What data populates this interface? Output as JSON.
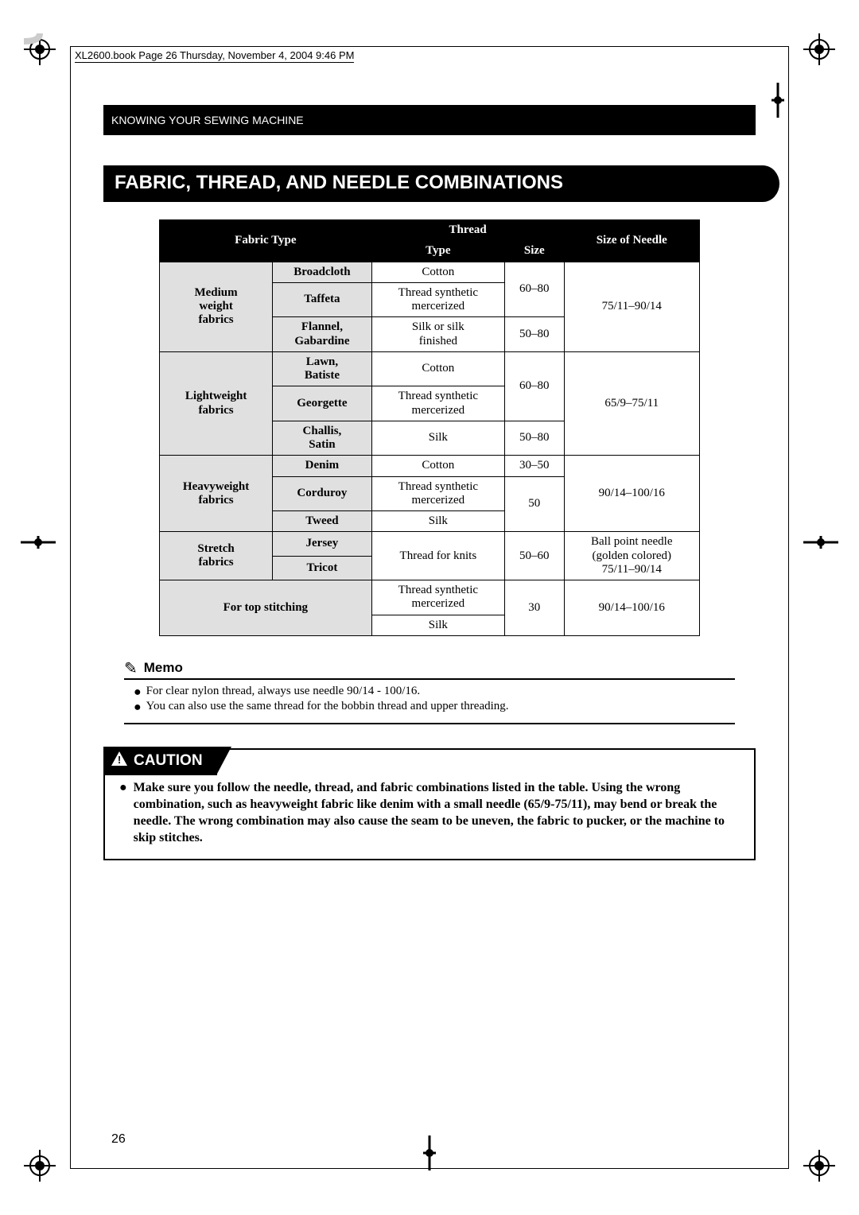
{
  "header": "XL2600.book  Page 26  Thursday, November 4, 2004  9:46 PM",
  "section": "KNOWING YOUR SEWING MACHINE",
  "title": "FABRIC, THREAD, AND NEEDLE COMBINATIONS",
  "table": {
    "headers": {
      "fabric": "Fabric Type",
      "thread": "Thread",
      "type": "Type",
      "size": "Size",
      "needle": "Size of Needle"
    },
    "groups": [
      {
        "group": "Medium weight fabrics",
        "rows": [
          {
            "fabric": "Broadcloth",
            "thread": "Cotton",
            "size": "60–80",
            "needle": "75/11–90/14",
            "sizeRowspan": 2,
            "needleRowspan": 3
          },
          {
            "fabric": "Taffeta",
            "thread": "Thread synthetic mercerized"
          },
          {
            "fabric": "Flannel, Gabardine",
            "thread": "Silk or silk finished",
            "size": "50–80"
          }
        ]
      },
      {
        "group": "Lightweight fabrics",
        "rows": [
          {
            "fabric": "Lawn, Batiste",
            "thread": "Cotton",
            "size": "60–80",
            "needle": "65/9–75/11",
            "sizeRowspan": 2,
            "needleRowspan": 3
          },
          {
            "fabric": "Georgette",
            "thread": "Thread synthetic mercerized"
          },
          {
            "fabric": "Challis, Satin",
            "thread": "Silk",
            "size": "50–80"
          }
        ]
      },
      {
        "group": "Heavyweight fabrics",
        "rows": [
          {
            "fabric": "Denim",
            "thread": "Cotton",
            "size": "30–50",
            "needle": "90/14–100/16",
            "needleRowspan": 3
          },
          {
            "fabric": "Corduroy",
            "thread": "Thread synthetic mercerized",
            "size": "50",
            "sizeRowspan": 2
          },
          {
            "fabric": "Tweed",
            "thread": "Silk"
          }
        ]
      },
      {
        "group": "Stretch fabrics",
        "rows": [
          {
            "fabric": "Jersey",
            "thread": "Thread for knits",
            "size": "50–60",
            "needle": "Ball point needle (golden colored) 75/11–90/14",
            "threadRowspan": 2,
            "sizeRowspan": 2,
            "needleRowspan": 2
          },
          {
            "fabric": "Tricot"
          }
        ]
      },
      {
        "group": "For top stitching",
        "rows": [
          {
            "thread": "Thread synthetic mercerized",
            "size": "30",
            "needle": "90/14–100/16",
            "sizeRowspan": 2,
            "needleRowspan": 2
          },
          {
            "thread": "Silk"
          }
        ]
      }
    ]
  },
  "memo": {
    "title": "Memo",
    "items": [
      "For clear nylon thread, always use needle 90/14 - 100/16.",
      "You can also use the same thread for the bobbin thread and upper threading."
    ]
  },
  "caution": {
    "title": "CAUTION",
    "text": "Make sure you follow the needle, thread, and fabric combinations listed in the table. Using the wrong combination, such as heavyweight fabric like denim with a small needle (65/9-75/11), may bend or break the needle. The wrong combination may also cause the seam to be uneven, the fabric to pucker, or the machine to skip stitches."
  },
  "page_number": "26",
  "colors": {
    "black": "#000000",
    "white": "#ffffff",
    "gray": "#e0e0e0"
  }
}
